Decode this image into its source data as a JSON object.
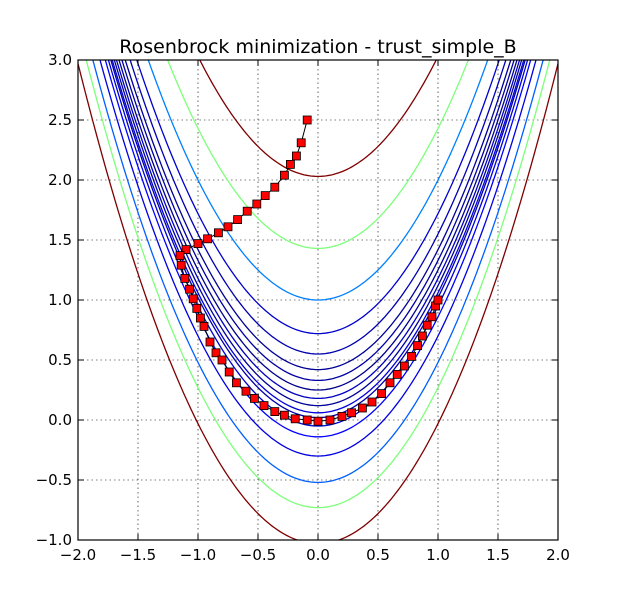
{
  "chart_data": {
    "type": "contour-line",
    "title": "Rosenbrock minimization - trust_simple_B",
    "xlabel": "",
    "ylabel": "",
    "xlim": [
      -2.0,
      2.0
    ],
    "ylim": [
      -1.0,
      3.0
    ],
    "grid": true,
    "x_ticks": [
      "−2.0",
      "−1.5",
      "−1.0",
      "−0.5",
      "0.0",
      "0.5",
      "1.0",
      "1.5",
      "2.0"
    ],
    "x_tick_values": [
      -2.0,
      -1.5,
      -1.0,
      -0.5,
      0.0,
      0.5,
      1.0,
      1.5,
      2.0
    ],
    "y_ticks": [
      "−1.0",
      "−0.5",
      "0.0",
      "0.5",
      "1.0",
      "1.5",
      "2.0",
      "2.5",
      "3.0"
    ],
    "y_tick_values": [
      -1.0,
      -0.5,
      0.0,
      0.5,
      1.0,
      1.5,
      2.0,
      2.5,
      3.0
    ],
    "contours": {
      "function": "rosenbrock",
      "curve_offsets": [
        {
          "c": 2.03,
          "color": "#7f0000"
        },
        {
          "c": 1.43,
          "color": "#7dff7a"
        },
        {
          "c": 1.0,
          "color": "#0080ff"
        },
        {
          "c": 0.72,
          "color": "#0000ce"
        },
        {
          "c": 0.55,
          "color": "#0000b0"
        },
        {
          "c": 0.42,
          "color": "#000096"
        },
        {
          "c": 0.33,
          "color": "#0000a4"
        },
        {
          "c": 0.25,
          "color": "#00008b"
        },
        {
          "c": 0.18,
          "color": "#0000c0"
        },
        {
          "c": 0.12,
          "color": "#00009a"
        },
        {
          "c": 0.06,
          "color": "#0000d8"
        },
        {
          "c": 0.02,
          "color": "#0000a8"
        },
        {
          "c": -0.05,
          "color": "#0000d0"
        },
        {
          "c": -0.14,
          "color": "#0000ff"
        },
        {
          "c": -0.3,
          "color": "#0000e0"
        },
        {
          "c": -0.52,
          "color": "#0060ff"
        },
        {
          "c": -0.73,
          "color": "#7dff7a"
        },
        {
          "c": -1.03,
          "color": "#7f0000"
        }
      ],
      "colors": [
        "#7f0000",
        "#7dff7a",
        "#0080ff",
        "#00008f",
        "#0000ff"
      ]
    },
    "series": [
      {
        "marker": "square",
        "color": "#ff0000",
        "points": [
          [
            -0.09,
            2.5
          ],
          [
            -0.14,
            2.31
          ],
          [
            -0.18,
            2.2
          ],
          [
            -0.23,
            2.13
          ],
          [
            -0.28,
            2.04
          ],
          [
            -0.36,
            1.94
          ],
          [
            -0.44,
            1.87
          ],
          [
            -0.51,
            1.8
          ],
          [
            -0.59,
            1.74
          ],
          [
            -0.67,
            1.67
          ],
          [
            -0.75,
            1.61
          ],
          [
            -0.83,
            1.56
          ],
          [
            -0.92,
            1.51
          ],
          [
            -1.0,
            1.47
          ],
          [
            -1.1,
            1.42
          ],
          [
            -1.15,
            1.37
          ],
          [
            -1.14,
            1.29
          ],
          [
            -1.11,
            1.18
          ],
          [
            -1.07,
            1.09
          ],
          [
            -1.04,
            1.01
          ],
          [
            -1.01,
            0.93
          ],
          [
            -0.98,
            0.85
          ],
          [
            -0.95,
            0.78
          ],
          [
            -0.9,
            0.65
          ],
          [
            -0.85,
            0.56
          ],
          [
            -0.8,
            0.5
          ],
          [
            -0.74,
            0.4
          ],
          [
            -0.68,
            0.31
          ],
          [
            -0.6,
            0.24
          ],
          [
            -0.53,
            0.18
          ],
          [
            -0.45,
            0.12
          ],
          [
            -0.36,
            0.07
          ],
          [
            -0.28,
            0.04
          ],
          [
            -0.19,
            0.01
          ],
          [
            -0.09,
            0.0
          ],
          [
            0.0,
            -0.01
          ],
          [
            0.1,
            0.0
          ],
          [
            0.2,
            0.03
          ],
          [
            0.28,
            0.06
          ],
          [
            0.37,
            0.1
          ],
          [
            0.45,
            0.15
          ],
          [
            0.53,
            0.22
          ],
          [
            0.6,
            0.31
          ],
          [
            0.66,
            0.38
          ],
          [
            0.72,
            0.45
          ],
          [
            0.78,
            0.53
          ],
          [
            0.83,
            0.62
          ],
          [
            0.87,
            0.7
          ],
          [
            0.91,
            0.79
          ],
          [
            0.95,
            0.86
          ],
          [
            0.98,
            0.95
          ],
          [
            1.0,
            1.0
          ]
        ]
      }
    ]
  }
}
